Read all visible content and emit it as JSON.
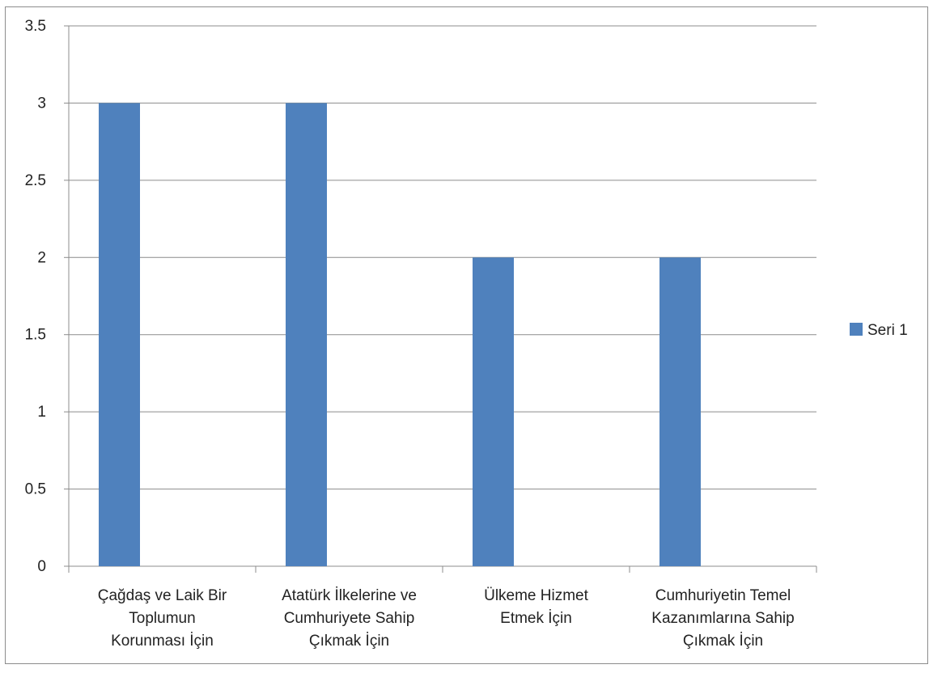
{
  "chart_data": {
    "type": "bar",
    "categories": [
      "Çağdaş ve Laik Bir Toplumun Korunması İçin",
      "Atatürk İlkelerine ve Cumhuriyete Sahip Çıkmak İçin",
      "Ülkeme Hizmet Etmek İçin",
      "Cumhuriyetin Temel Kazanımlarına Sahip Çıkmak İçin"
    ],
    "category_lines": [
      [
        "Çağdaş ve Laik Bir",
        "Toplumun",
        "Korunması İçin"
      ],
      [
        "Atatürk İlkelerine ve",
        "Cumhuriyete Sahip",
        "Çıkmak İçin"
      ],
      [
        "Ülkeme Hizmet",
        "Etmek İçin"
      ],
      [
        "Cumhuriyetin Temel",
        "Kazanımlarına Sahip",
        "Çıkmak İçin"
      ]
    ],
    "series": [
      {
        "name": "Seri 1",
        "values": [
          3,
          3,
          2,
          2
        ],
        "color": "#4f81bd"
      }
    ],
    "ylim": [
      0,
      3.5
    ],
    "yticks": [
      "0",
      "0.5",
      "1",
      "1.5",
      "2",
      "2.5",
      "3",
      "3.5"
    ],
    "grid": true,
    "legend_position": "right",
    "title": "",
    "xlabel": "",
    "ylabel": ""
  }
}
